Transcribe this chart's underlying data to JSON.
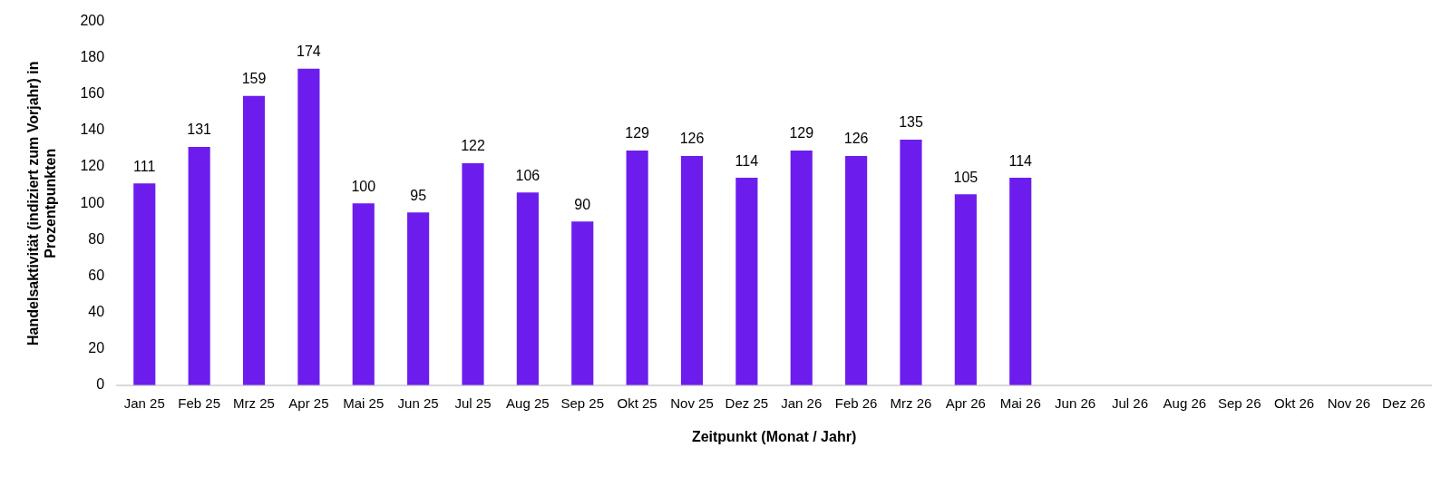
{
  "chart_data": {
    "type": "bar",
    "xlabel": "Zeitpunkt (Monat / Jahr)",
    "ylabel": "Handelsaktivität (indiziert zum Vorjahr) in Prozentpunkten",
    "categories": [
      "Jan 25",
      "Feb 25",
      "Mrz 25",
      "Apr 25",
      "Mai 25",
      "Jun 25",
      "Jul 25",
      "Aug 25",
      "Sep 25",
      "Okt 25",
      "Nov 25",
      "Dez 25",
      "Jan 26",
      "Feb 26",
      "Mrz 26",
      "Apr 26",
      "Mai 26",
      "Jun 26",
      "Jul 26",
      "Aug 26",
      "Sep 26",
      "Okt 26",
      "Nov 26",
      "Dez 26"
    ],
    "values": [
      111,
      131,
      159,
      174,
      100,
      95,
      122,
      106,
      90,
      129,
      126,
      114,
      129,
      126,
      135,
      105,
      114,
      null,
      null,
      null,
      null,
      null,
      null,
      null
    ],
    "color": "#6c1ded",
    "ylim": [
      0,
      200
    ],
    "yticks": [
      0,
      20,
      40,
      60,
      80,
      100,
      120,
      140,
      160,
      180,
      200
    ],
    "grid": false,
    "legend": false,
    "data_labels": true
  }
}
